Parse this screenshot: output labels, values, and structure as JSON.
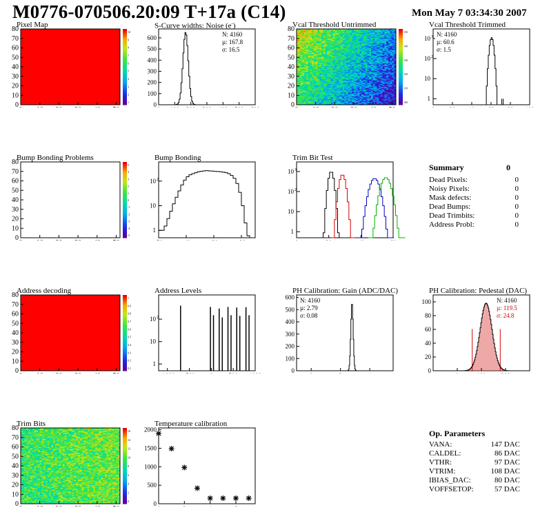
{
  "header": {
    "title": "M0776-070506.20:09 T+17a (C14)",
    "date": "Mon May  7 03:34:30 2007"
  },
  "summary": {
    "title": "Summary",
    "total": "0",
    "rows": [
      {
        "label": "Dead Pixels:",
        "value": "0"
      },
      {
        "label": "Noisy Pixels:",
        "value": "0"
      },
      {
        "label": "Mask defects:",
        "value": "0"
      },
      {
        "label": "Dead Bumps:",
        "value": "0"
      },
      {
        "label": "Dead Trimbits:",
        "value": "0"
      },
      {
        "label": "Address Probl:",
        "value": "0"
      }
    ]
  },
  "op_params": {
    "title": "Op. Parameters",
    "rows": [
      {
        "label": "VANA:",
        "value": "147 DAC"
      },
      {
        "label": "CALDEL:",
        "value": "86 DAC"
      },
      {
        "label": "VTHR:",
        "value": "97 DAC"
      },
      {
        "label": "VTRIM:",
        "value": "108 DAC"
      },
      {
        "label": "IBIAS_DAC:",
        "value": "80 DAC"
      },
      {
        "label": "VOFFSETOP:",
        "value": "57 DAC"
      }
    ]
  },
  "chart_data": [
    {
      "id": "pixel-map",
      "type": "heatmap",
      "title": "Pixel Map",
      "fill": "uniform-red",
      "xlim": [
        0,
        52
      ],
      "ylim": [
        0,
        80
      ],
      "xticks": [
        "0",
        "10",
        "20",
        "30",
        "40",
        "50"
      ],
      "yticks": [
        "0",
        "10",
        "20",
        "30",
        "40",
        "50",
        "60",
        "70",
        "80"
      ],
      "zticks": [
        "10",
        "9",
        "8",
        "7",
        "6",
        "5",
        "4",
        "3",
        "2",
        "1"
      ]
    },
    {
      "id": "scurve-noise",
      "type": "histogram",
      "title": "S-Curve widths: Noise (e",
      "xlim": [
        0,
        600
      ],
      "ylim": [
        0,
        680
      ],
      "logy": false,
      "xticks": [
        "0",
        "100",
        "200",
        "300",
        "400",
        "500",
        "600"
      ],
      "yticks": [
        "0",
        "100",
        "200",
        "300",
        "400",
        "500",
        "600"
      ],
      "stats": [
        {
          "label": "N:",
          "value": "4160"
        },
        {
          "label": "µ:",
          "value": "167.8"
        },
        {
          "label": "σ:",
          "value": "16.5"
        }
      ],
      "series": [
        {
          "color": "#000000",
          "gauss": {
            "mean": 167.8,
            "sigma": 16.5,
            "peak": 650,
            "binw": 6
          }
        }
      ]
    },
    {
      "id": "vcal-untrimmed",
      "type": "heatmap",
      "title": "Vcal Threshold Untrimmed",
      "fill": "gradient-untrimmed",
      "xlim": [
        0,
        52
      ],
      "ylim": [
        0,
        80
      ],
      "xticks": [
        "0",
        "10",
        "20",
        "30",
        "40",
        "50"
      ],
      "yticks": [
        "0",
        "10",
        "20",
        "30",
        "40",
        "50",
        "60",
        "70",
        "80"
      ],
      "zticks": [
        "150",
        "140",
        "130",
        "120",
        "110",
        "100"
      ]
    },
    {
      "id": "vcal-trimmed",
      "type": "histogram",
      "title": "Vcal Threshold Trimmed",
      "xlim": [
        0,
        100
      ],
      "ylim": [
        0.5,
        3000
      ],
      "logy": true,
      "xticks": [
        "0",
        "20",
        "40",
        "60",
        "80",
        "100"
      ],
      "yticks": [
        "1",
        "10",
        "10",
        "10"
      ],
      "stats": [
        {
          "label": "N:",
          "value": "4160"
        },
        {
          "label": "µ:",
          "value": "60.6"
        },
        {
          "label": "σ:",
          "value": "1.5"
        }
      ],
      "series": [
        {
          "color": "#000000",
          "gauss": {
            "mean": 60.6,
            "sigma": 1.5,
            "peak": 1100,
            "binw": 1
          }
        }
      ]
    },
    {
      "id": "bump-bonding-problems",
      "type": "heatmap",
      "title": "Bump Bonding Problems",
      "fill": "empty",
      "xlim": [
        0,
        52
      ],
      "ylim": [
        0,
        80
      ],
      "xticks": [
        "0",
        "10",
        "20",
        "30",
        "40",
        "50"
      ],
      "yticks": [
        "0",
        "10",
        "20",
        "30",
        "40",
        "50",
        "60",
        "70",
        "80"
      ],
      "zticks": [
        "5",
        "4",
        "3",
        "2",
        "1",
        "0",
        "-1",
        "-2",
        "-3",
        "-4",
        "-5"
      ]
    },
    {
      "id": "bump-bonding",
      "type": "histogram",
      "title": "Bump Bonding",
      "xlim": [
        -50,
        -15
      ],
      "ylim": [
        0.5,
        600
      ],
      "logy": true,
      "xticks": [
        "-50",
        "-40",
        "-30",
        "-20"
      ],
      "yticks": [
        "1",
        "10",
        "10"
      ],
      "series": [
        {
          "color": "#000000",
          "bins": [
            [
              -50,
              1
            ],
            [
              -49,
              1
            ],
            [
              -48,
              1.5
            ],
            [
              -47,
              3
            ],
            [
              -46,
              6
            ],
            [
              -45,
              12
            ],
            [
              -44,
              22
            ],
            [
              -43,
              40
            ],
            [
              -42,
              70
            ],
            [
              -41,
              110
            ],
            [
              -40,
              150
            ],
            [
              -39,
              180
            ],
            [
              -38,
              200
            ],
            [
              -37,
              220
            ],
            [
              -36,
              240
            ],
            [
              -35,
              250
            ],
            [
              -34,
              260
            ],
            [
              -33,
              265
            ],
            [
              -32,
              260
            ],
            [
              -31,
              255
            ],
            [
              -30,
              250
            ],
            [
              -29,
              245
            ],
            [
              -28,
              240
            ],
            [
              -27,
              230
            ],
            [
              -26,
              220
            ],
            [
              -25,
              200
            ],
            [
              -24,
              170
            ],
            [
              -23,
              130
            ],
            [
              -22,
              80
            ],
            [
              -21,
              35
            ],
            [
              -20,
              10
            ],
            [
              -19,
              2
            ],
            [
              -18,
              0.6
            ]
          ]
        }
      ]
    },
    {
      "id": "trim-bit-test",
      "type": "histogram",
      "title": "Trim Bit Test",
      "xlim": [
        0,
        60
      ],
      "ylim": [
        0.5,
        3000
      ],
      "logy": true,
      "xticks": [
        "0",
        "20",
        "40",
        "60"
      ],
      "yticks": [
        "1",
        "10",
        "10",
        "10"
      ],
      "series": [
        {
          "color": "#000000",
          "gauss": {
            "mean": 21.5,
            "sigma": 1.2,
            "peak": 1000,
            "binw": 1
          }
        },
        {
          "color": "#d00000",
          "gauss": {
            "mean": 28.5,
            "sigma": 1.4,
            "peak": 700,
            "binw": 1
          }
        },
        {
          "color": "#0000c0",
          "gauss": {
            "mean": 48.5,
            "sigma": 2.2,
            "peak": 450,
            "binw": 1
          }
        },
        {
          "color": "#00b000",
          "gauss": {
            "mean": 55.5,
            "sigma": 2.2,
            "peak": 500,
            "binw": 1
          }
        }
      ]
    },
    {
      "id": "address-decoding",
      "type": "heatmap",
      "title": "Address decoding",
      "fill": "uniform-red",
      "xlim": [
        0,
        52
      ],
      "ylim": [
        0,
        80
      ],
      "xticks": [
        "0",
        "10",
        "20",
        "30",
        "40",
        "50"
      ],
      "yticks": [
        "0",
        "10",
        "20",
        "30",
        "40",
        "50",
        "60",
        "70",
        "80"
      ],
      "zticks": [
        "1",
        "0.9",
        "0.8",
        "0.7",
        "0.6",
        "0.5",
        "0.4",
        "0.3",
        "0.2",
        "0.1"
      ]
    },
    {
      "id": "address-levels",
      "type": "histogram",
      "title": "Address Levels",
      "xlim": [
        -1200,
        1000
      ],
      "ylim": [
        0.5,
        1200
      ],
      "logy": true,
      "xticks": [
        "-1000",
        "-500",
        "0",
        "500",
        "1000"
      ],
      "yticks": [
        "1",
        "10",
        "10"
      ],
      "series": [
        {
          "color": "#000000",
          "spikes": [
            [
              -700,
              400
            ],
            [
              -20,
              350
            ],
            [
              50,
              150
            ],
            [
              180,
              300
            ],
            [
              250,
              120
            ],
            [
              380,
              350
            ],
            [
              450,
              150
            ],
            [
              580,
              330
            ],
            [
              650,
              140
            ],
            [
              790,
              340
            ],
            [
              860,
              150
            ]
          ]
        }
      ]
    },
    {
      "id": "ph-gain",
      "type": "histogram",
      "title": "PH Calibration: Gain (ADC/DAC)",
      "xlim": [
        -1,
        5.6
      ],
      "ylim": [
        0,
        620
      ],
      "logy": false,
      "xticks": [
        "0",
        "2",
        "4"
      ],
      "yticks": [
        "0",
        "100",
        "200",
        "300",
        "400",
        "500",
        "600"
      ],
      "stats": [
        {
          "label": "N:",
          "value": "4160"
        },
        {
          "label": "µ:",
          "value": "2.79"
        },
        {
          "label": "σ:",
          "value": "0.08"
        }
      ],
      "series": [
        {
          "color": "#000000",
          "gauss": {
            "mean": 2.79,
            "sigma": 0.08,
            "peak": 560,
            "binw": 0.04
          }
        }
      ]
    },
    {
      "id": "ph-pedestal",
      "type": "histogram",
      "title": "PH Calibration: Pedestal (DAC)",
      "xlim": [
        -100,
        300
      ],
      "ylim": [
        0,
        110
      ],
      "logy": false,
      "xticks": [
        "0",
        "100",
        "200"
      ],
      "yticks": [
        "0",
        "20",
        "40",
        "60",
        "80",
        "100"
      ],
      "stats": [
        {
          "label": "N:",
          "value": "4160"
        },
        {
          "label": "µ:",
          "value": "119.5",
          "color": "#d00000"
        },
        {
          "label": "σ:",
          "value": "24.8",
          "color": "#d00000"
        }
      ],
      "series": [
        {
          "color": "#000000",
          "gauss": {
            "mean": 119.5,
            "sigma": 24.8,
            "peak": 98,
            "binw": 3,
            "fill": "#e06060",
            "lines": [
              62,
              178
            ]
          }
        }
      ]
    },
    {
      "id": "trim-bits",
      "type": "heatmap",
      "title": "Trim Bits",
      "fill": "trimbits",
      "xlim": [
        0,
        52
      ],
      "ylim": [
        0,
        80
      ],
      "xticks": [
        "0",
        "10",
        "20",
        "30",
        "40",
        "50"
      ],
      "yticks": [
        "0",
        "10",
        "20",
        "30",
        "40",
        "50",
        "60",
        "70",
        "80"
      ],
      "zticks": [
        "16",
        "14",
        "12",
        "10",
        "8",
        "6",
        "4",
        "2",
        "0"
      ]
    },
    {
      "id": "temperature-calibration",
      "type": "scatter",
      "title": "Temperature calibration",
      "xlim": [
        0,
        7.5
      ],
      "ylim": [
        0,
        2050
      ],
      "logy": false,
      "xticks": [
        "0",
        "2",
        "4",
        "6"
      ],
      "yticks": [
        "0",
        "500",
        "1000",
        "1500",
        "2000"
      ],
      "points": [
        [
          0,
          1900
        ],
        [
          1,
          1490
        ],
        [
          2,
          980
        ],
        [
          3,
          420
        ],
        [
          4,
          150
        ],
        [
          5,
          150
        ],
        [
          6,
          150
        ],
        [
          7,
          150
        ]
      ]
    }
  ]
}
